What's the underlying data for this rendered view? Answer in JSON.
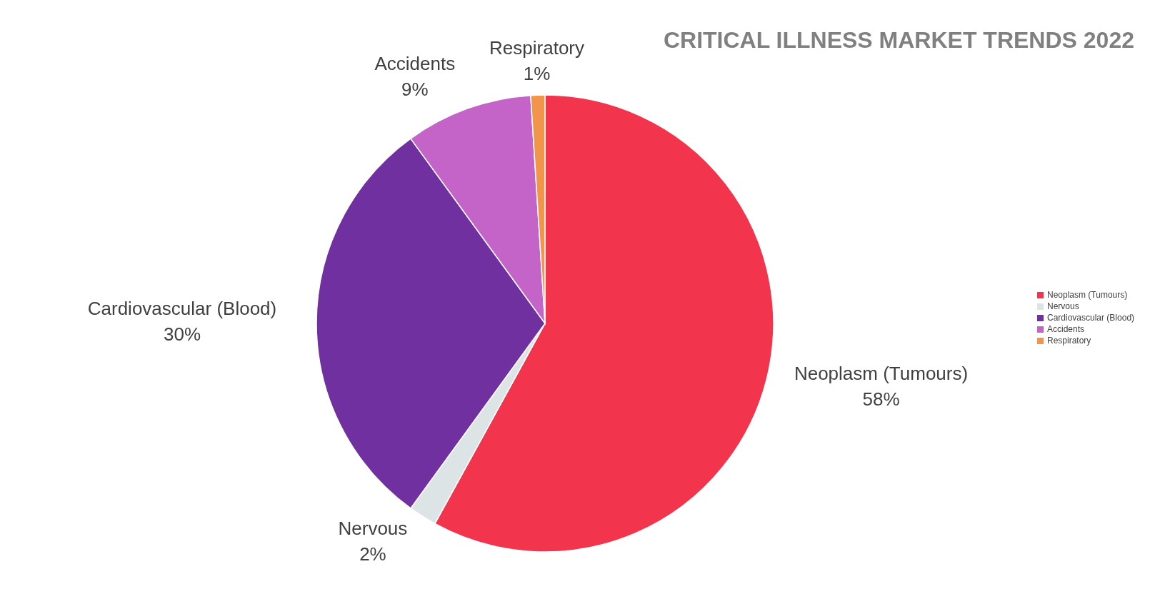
{
  "chart_data": {
    "type": "pie",
    "title": "CRITICAL ILLNESS MARKET TRENDS 2022",
    "categories": [
      "Neoplasm (Tumours)",
      "Nervous",
      "Cardiovascular (Blood)",
      "Accidents",
      "Respiratory"
    ],
    "values": [
      58,
      2,
      30,
      9,
      1
    ],
    "value_labels": [
      "58%",
      "2%",
      "30%",
      "9%",
      "1%"
    ],
    "colors": [
      "#f2354d",
      "#dde4e6",
      "#7030a0",
      "#c464c8",
      "#f0954a"
    ],
    "legend": "right"
  }
}
